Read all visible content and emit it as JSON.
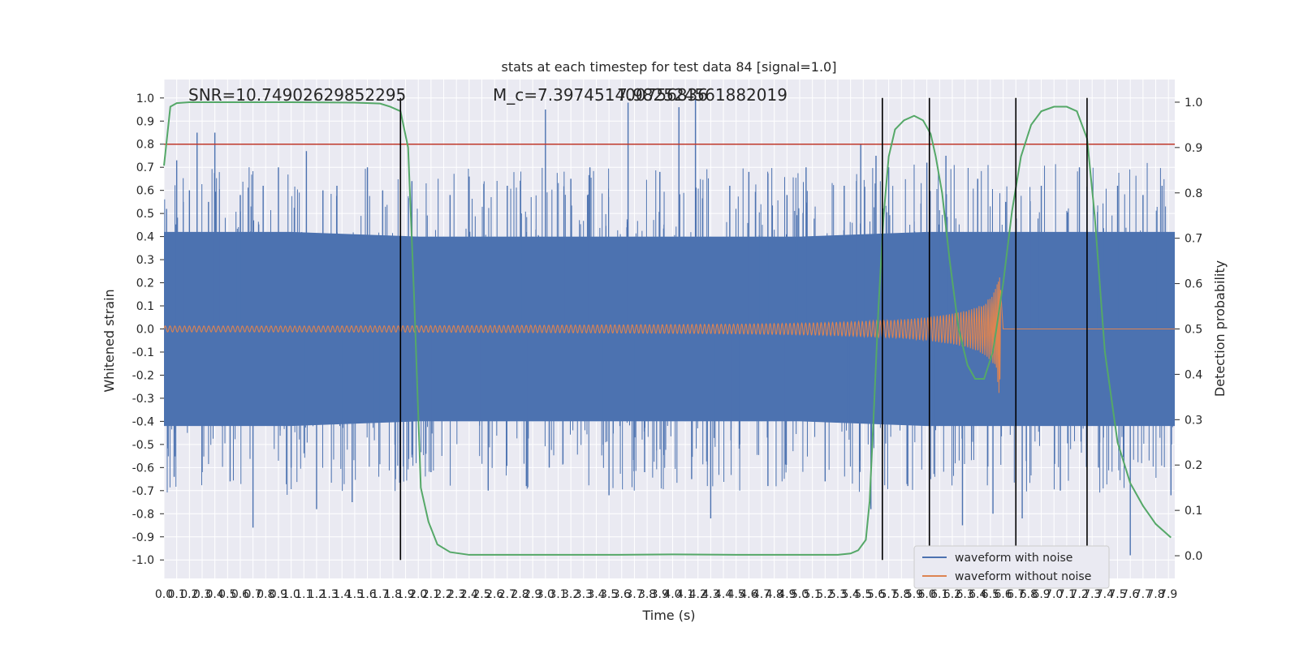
{
  "chart_data": {
    "type": "line",
    "title": "stats at each timestep for test data 84 [signal=1.0]",
    "xlabel": "Time (s)",
    "ylabel": "Whitened strain",
    "ylabel_right": "Detection probability",
    "xlim": [
      0.0,
      7.95
    ],
    "ylim": [
      -1.08,
      1.08
    ],
    "ylim_right": [
      -0.05,
      1.05
    ],
    "x_ticks": [
      "0.0",
      "0.1",
      "0.2",
      "0.3",
      "0.4",
      "0.5",
      "0.6",
      "0.7",
      "0.8",
      "0.9",
      "1.0",
      "1.1",
      "1.2",
      "1.3",
      "1.4",
      "1.5",
      "1.6",
      "1.7",
      "1.8",
      "1.9",
      "2.0",
      "2.1",
      "2.2",
      "2.3",
      "2.4",
      "2.5",
      "2.6",
      "2.7",
      "2.8",
      "2.9",
      "3.0",
      "3.1",
      "3.2",
      "3.3",
      "3.4",
      "3.5",
      "3.6",
      "3.7",
      "3.8",
      "3.9",
      "4.0",
      "4.1",
      "4.2",
      "4.3",
      "4.4",
      "4.5",
      "4.6",
      "4.7",
      "4.8",
      "4.9",
      "5.0",
      "5.1",
      "5.2",
      "5.3",
      "5.4",
      "5.5",
      "5.6",
      "5.7",
      "5.8",
      "5.9",
      "6.0",
      "6.1",
      "6.2",
      "6.3",
      "6.4",
      "6.5",
      "6.6",
      "6.7",
      "6.8",
      "6.9",
      "7.0",
      "7.1",
      "7.2",
      "7.3",
      "7.4",
      "7.5",
      "7.6",
      "7.7",
      "7.8",
      "7.9"
    ],
    "y_ticks": [
      "1.0",
      "0.9",
      "0.8",
      "0.7",
      "0.6",
      "0.5",
      "0.4",
      "0.3",
      "0.2",
      "0.1",
      "0.0",
      "-0.1",
      "-0.2",
      "-0.3",
      "-0.4",
      "-0.5",
      "-0.6",
      "-0.7",
      "-0.8",
      "-0.9",
      "-1.0"
    ],
    "y_ticks_right": [
      "1.0",
      "0.9",
      "0.8",
      "0.7",
      "0.6",
      "0.5",
      "0.4",
      "0.3",
      "0.2",
      "0.1",
      "0.0"
    ],
    "annotations": [
      "SNR=10.74902629852295",
      "M_c=7.397451400756836",
      "7.982524561882019"
    ],
    "threshold": {
      "y": 0.8,
      "color": "#c0392b"
    },
    "vertical_lines": [
      1.86,
      5.65,
      6.02,
      6.7,
      7.26
    ],
    "legend": {
      "placement": "lower-right",
      "entries": [
        "waveform with noise",
        "waveform without noise"
      ]
    },
    "colors": {
      "noise": "#4c72b0",
      "clean": "#dd8452",
      "prob": "#55a868",
      "vline": "#000000",
      "bg": "#eaeaf2",
      "grid": "#ffffff"
    },
    "series": [
      {
        "name": "waveform with noise",
        "band_x": [
          0.0,
          1.0,
          2.0,
          3.0,
          4.0,
          5.0,
          6.0,
          7.0,
          7.95
        ],
        "band_upper": [
          0.42,
          0.42,
          0.4,
          0.4,
          0.4,
          0.4,
          0.42,
          0.42,
          0.42
        ],
        "band_lower": [
          -0.42,
          -0.42,
          -0.4,
          -0.4,
          -0.4,
          -0.4,
          -0.42,
          -0.42,
          -0.42
        ],
        "peaks_x": [
          0.02,
          0.08,
          0.1,
          0.2,
          0.26,
          0.3,
          0.35,
          0.4,
          0.52,
          0.6,
          0.7,
          0.78,
          0.9,
          1.0,
          1.12,
          1.2,
          1.25,
          1.36,
          1.48,
          1.6,
          1.72,
          1.82,
          1.95,
          2.1,
          2.25,
          2.4,
          2.55,
          2.7,
          2.85,
          3.0,
          3.03,
          3.2,
          3.35,
          3.5,
          3.65,
          3.78,
          3.9,
          4.05,
          4.15,
          4.18,
          4.3,
          4.45,
          4.6,
          4.75,
          4.9,
          5.05,
          5.2,
          5.35,
          5.48,
          5.56,
          5.6,
          5.7,
          5.85,
          6.0,
          6.02,
          6.15,
          6.28,
          6.4,
          6.52,
          6.62,
          6.75,
          6.9,
          7.05,
          7.2,
          7.35,
          7.5,
          7.6,
          7.7,
          7.85,
          7.92
        ],
        "peaks_y": [
          0.52,
          -0.64,
          0.73,
          0.6,
          0.85,
          -0.62,
          0.55,
          0.85,
          -0.66,
          0.58,
          -0.86,
          0.62,
          0.7,
          -0.6,
          0.77,
          -0.78,
          0.6,
          0.62,
          -0.75,
          0.7,
          0.6,
          -0.65,
          0.64,
          -0.62,
          0.58,
          0.66,
          -0.7,
          0.62,
          -0.68,
          0.95,
          -0.6,
          0.65,
          0.7,
          -0.72,
          0.98,
          -0.62,
          0.68,
          0.96,
          -0.65,
          1.0,
          -0.82,
          0.62,
          0.68,
          -0.68,
          0.58,
          0.7,
          -0.66,
          0.62,
          0.8,
          -0.78,
          0.75,
          0.7,
          -0.68,
          0.72,
          -0.72,
          0.75,
          -0.85,
          0.65,
          -0.8,
          0.55,
          -0.82,
          0.62,
          -0.7,
          0.7,
          -0.6,
          0.62,
          -0.98,
          0.58,
          0.62,
          -0.72
        ]
      },
      {
        "name": "waveform without noise",
        "envelope_x": [
          0.0,
          1.0,
          2.0,
          3.0,
          4.0,
          4.5,
          5.0,
          5.3,
          5.6,
          5.8,
          6.0,
          6.2,
          6.35,
          6.45,
          6.52,
          6.55,
          6.58,
          6.6,
          7.95
        ],
        "envelope_upper": [
          0.013,
          0.013,
          0.014,
          0.016,
          0.019,
          0.021,
          0.025,
          0.029,
          0.035,
          0.04,
          0.05,
          0.066,
          0.085,
          0.11,
          0.15,
          0.19,
          0.25,
          0.0,
          0.0
        ],
        "envelope_lower": [
          -0.013,
          -0.013,
          -0.014,
          -0.016,
          -0.019,
          -0.021,
          -0.025,
          -0.029,
          -0.035,
          -0.04,
          -0.05,
          -0.066,
          -0.085,
          -0.11,
          -0.15,
          -0.2,
          -0.34,
          0.0,
          0.0
        ]
      },
      {
        "name": "Detection probability",
        "x": [
          0.0,
          0.05,
          0.1,
          0.2,
          0.3,
          0.5,
          1.0,
          1.5,
          1.7,
          1.78,
          1.86,
          1.92,
          1.97,
          2.02,
          2.08,
          2.15,
          2.25,
          2.4,
          2.6,
          3.0,
          3.5,
          4.0,
          4.5,
          5.0,
          5.3,
          5.4,
          5.46,
          5.52,
          5.55,
          5.58,
          5.62,
          5.66,
          5.7,
          5.75,
          5.82,
          5.9,
          5.97,
          6.03,
          6.07,
          6.12,
          6.18,
          6.25,
          6.32,
          6.38,
          6.45,
          6.52,
          6.6,
          6.67,
          6.74,
          6.82,
          6.9,
          7.0,
          7.1,
          7.18,
          7.26,
          7.32,
          7.4,
          7.5,
          7.6,
          7.7,
          7.8,
          7.92
        ],
        "y": [
          0.86,
          0.99,
          0.998,
          1.0,
          1.0,
          1.0,
          1.0,
          0.999,
          0.997,
          0.99,
          0.98,
          0.9,
          0.55,
          0.15,
          0.075,
          0.025,
          0.008,
          0.002,
          0.002,
          0.002,
          0.002,
          0.003,
          0.002,
          0.002,
          0.002,
          0.005,
          0.012,
          0.035,
          0.12,
          0.3,
          0.55,
          0.75,
          0.88,
          0.94,
          0.96,
          0.97,
          0.96,
          0.93,
          0.88,
          0.8,
          0.65,
          0.5,
          0.42,
          0.39,
          0.39,
          0.45,
          0.6,
          0.76,
          0.88,
          0.95,
          0.98,
          0.99,
          0.99,
          0.98,
          0.92,
          0.75,
          0.45,
          0.25,
          0.16,
          0.11,
          0.07,
          0.04
        ]
      }
    ]
  }
}
